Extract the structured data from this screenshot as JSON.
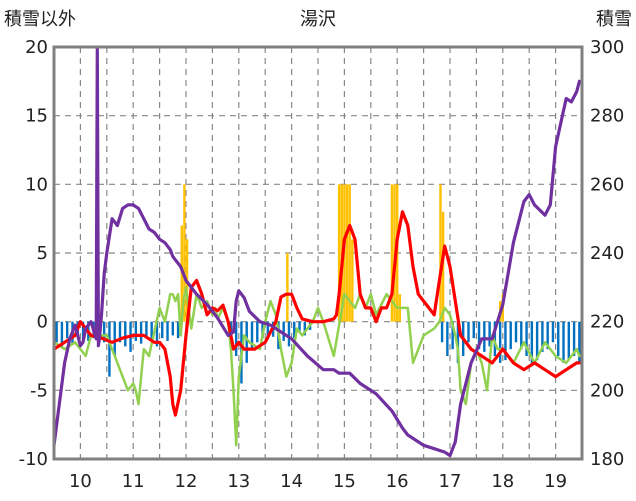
{
  "chart_data": {
    "type": "line",
    "title": "湯沢",
    "left_axis_label": "積雪以外",
    "right_axis_label": "積雪",
    "x_tick_labels": [
      "10",
      "11",
      "12",
      "13",
      "14",
      "15",
      "16",
      "17",
      "18",
      "19"
    ],
    "xlim": [
      9.5,
      19.5
    ],
    "y_left": {
      "lim": [
        -10,
        20
      ],
      "ticks": [
        -10,
        -5,
        0,
        5,
        10,
        15,
        20
      ]
    },
    "y_right": {
      "lim": [
        180,
        300
      ],
      "ticks": [
        180,
        200,
        220,
        240,
        260,
        280,
        300
      ]
    },
    "grid": {
      "horizontal": "dashed",
      "vertical": "dashed"
    },
    "colors": {
      "snow_depth": "#7030A0",
      "temperature_red": "#FF0000",
      "temperature_green": "#92D050",
      "precip_orange": "#FFC000",
      "bars_blue": "#0070C0",
      "axes": "#808080",
      "grid": "#888888"
    },
    "series": [
      {
        "key": "snow_depth",
        "axis": "right",
        "type": "line",
        "x": [
          9.5,
          9.6,
          9.7,
          9.8,
          9.9,
          10.0,
          10.05,
          10.1,
          10.2,
          10.3,
          10.32,
          10.34,
          10.36,
          10.4,
          10.45,
          10.5,
          10.6,
          10.7,
          10.8,
          10.9,
          11.0,
          11.1,
          11.2,
          11.3,
          11.4,
          11.5,
          11.6,
          11.7,
          11.75,
          11.8,
          11.9,
          12.0,
          12.2,
          12.4,
          12.6,
          12.8,
          12.9,
          12.95,
          13.0,
          13.1,
          13.2,
          13.4,
          13.6,
          13.8,
          14.0,
          14.3,
          14.6,
          14.8,
          14.9,
          15.0,
          15.1,
          15.3,
          15.6,
          15.9,
          16.1,
          16.2,
          16.3,
          16.5,
          16.7,
          16.9,
          17.0,
          17.1,
          17.2,
          17.4,
          17.6,
          17.8,
          18.0,
          18.2,
          18.4,
          18.5,
          18.6,
          18.8,
          18.9,
          19.0,
          19.1,
          19.2,
          19.3,
          19.4,
          19.45
        ],
        "values": [
          184,
          196,
          208,
          215,
          219,
          213,
          214,
          218,
          220,
          215,
          300,
          213,
          215,
          222,
          234,
          240,
          250,
          248,
          253,
          254,
          254,
          253,
          250,
          247,
          246,
          244,
          243,
          241,
          239,
          238,
          236,
          232,
          228,
          225,
          221,
          216,
          217,
          226,
          229,
          227,
          223,
          220,
          219,
          217,
          215,
          210,
          206,
          206,
          205,
          205,
          205,
          202,
          199,
          194,
          189,
          187,
          186,
          184,
          183,
          182,
          181,
          185,
          196,
          208,
          215,
          215,
          225,
          243,
          255,
          257,
          254,
          251,
          254,
          271,
          278,
          285,
          284,
          287,
          290
        ]
      },
      {
        "key": "temperature_red",
        "axis": "left",
        "type": "line",
        "x": [
          9.5,
          9.7,
          9.9,
          10.0,
          10.2,
          10.4,
          10.6,
          10.8,
          11.0,
          11.2,
          11.4,
          11.5,
          11.6,
          11.7,
          11.75,
          11.8,
          11.9,
          12.0,
          12.1,
          12.2,
          12.3,
          12.4,
          12.5,
          12.6,
          12.7,
          12.8,
          12.9,
          13.0,
          13.1,
          13.3,
          13.5,
          13.7,
          13.8,
          13.9,
          14.0,
          14.1,
          14.2,
          14.4,
          14.6,
          14.8,
          14.85,
          14.9,
          15.0,
          15.1,
          15.2,
          15.3,
          15.4,
          15.5,
          15.6,
          15.7,
          15.8,
          15.9,
          16.0,
          16.1,
          16.2,
          16.3,
          16.4,
          16.5,
          16.6,
          16.7,
          16.8,
          16.9,
          17.0,
          17.2,
          17.4,
          17.6,
          17.8,
          18.0,
          18.2,
          18.4,
          18.6,
          18.8,
          19.0,
          19.2,
          19.4,
          19.45
        ],
        "values": [
          -2,
          -1.5,
          -1,
          0,
          -1,
          -1.2,
          -1.5,
          -1.2,
          -1,
          -1,
          -1.5,
          -1.5,
          -2,
          -4,
          -6,
          -6.8,
          -5,
          -1,
          2.5,
          3,
          2,
          0.5,
          1,
          0.8,
          1.2,
          0,
          -2,
          -1.5,
          -2,
          -2,
          -1.5,
          0,
          1.8,
          2,
          2,
          1,
          0.2,
          0,
          0,
          0.2,
          0.5,
          2,
          6,
          7,
          6,
          2,
          1,
          1,
          0,
          1,
          1,
          2,
          6,
          8,
          7,
          4,
          2,
          1.5,
          1,
          0.5,
          3,
          5.5,
          4,
          -1,
          -2,
          -2.5,
          -3,
          -2,
          -3,
          -3.5,
          -3,
          -3.5,
          -4,
          -3.5,
          -3,
          -3
        ]
      },
      {
        "key": "temperature_green",
        "axis": "left",
        "type": "line",
        "x": [
          9.5,
          9.7,
          9.9,
          10.1,
          10.2,
          10.3,
          10.5,
          10.7,
          10.8,
          10.9,
          11.0,
          11.05,
          11.1,
          11.2,
          11.3,
          11.5,
          11.6,
          11.7,
          11.75,
          11.8,
          11.85,
          11.9,
          11.95,
          12.0,
          12.05,
          12.1,
          12.2,
          12.3,
          12.4,
          12.5,
          12.55,
          12.6,
          12.7,
          12.8,
          12.85,
          12.9,
          12.95,
          13.0,
          13.1,
          13.2,
          13.4,
          13.5,
          13.6,
          13.7,
          13.8,
          13.9,
          14.0,
          14.1,
          14.2,
          14.4,
          14.5,
          14.6,
          14.8,
          15.0,
          15.1,
          15.2,
          15.3,
          15.4,
          15.5,
          15.6,
          15.8,
          16.0,
          16.1,
          16.2,
          16.3,
          16.5,
          16.7,
          16.8,
          16.9,
          17.0,
          17.1,
          17.15,
          17.2,
          17.3,
          17.4,
          17.5,
          17.6,
          17.7,
          17.8,
          17.9,
          18.0,
          18.2,
          18.4,
          18.6,
          18.8,
          19.0,
          19.2,
          19.4,
          19.45
        ],
        "values": [
          -1.5,
          -2,
          -1.5,
          -2.5,
          -1,
          -1,
          -1,
          -3,
          -4,
          -5,
          -4.5,
          -5,
          -6,
          -2,
          -2.5,
          1,
          0,
          2,
          2,
          1.5,
          2,
          -1,
          1.5,
          2.5,
          1,
          -0.5,
          2,
          1,
          1.5,
          0.5,
          1,
          0.2,
          1,
          0,
          -2,
          -5,
          -9,
          -4,
          -1,
          -1.5,
          -2,
          0,
          1.5,
          0.5,
          -2,
          -4,
          -3,
          -0.5,
          -1,
          0,
          1,
          0,
          -2.5,
          2,
          1.5,
          1,
          2,
          1,
          2,
          0.5,
          2,
          1,
          1,
          1,
          -3,
          -1,
          -0.5,
          0,
          1,
          0.5,
          -1,
          -2,
          -5,
          -6,
          -3,
          -2,
          -3,
          -5,
          -1,
          -2,
          -2,
          -3,
          -1.5,
          -3,
          -1.5,
          -2.5,
          -3,
          -2,
          -2.5
        ]
      },
      {
        "key": "precip_orange",
        "axis": "left",
        "type": "bar",
        "x": [
          11.92,
          11.97,
          12.02,
          13.92,
          14.9,
          14.95,
          15.0,
          15.05,
          15.1,
          15.15,
          15.9,
          15.95,
          16.0,
          16.05,
          16.82,
          16.87,
          17.95,
          18.0
        ],
        "values": [
          7,
          10,
          6,
          5,
          10,
          10,
          10,
          10,
          10,
          6,
          10,
          10,
          10,
          2,
          10,
          8,
          1.5,
          2
        ]
      },
      {
        "key": "bars_blue",
        "axis": "left",
        "type": "bar",
        "x": [
          9.55,
          9.65,
          9.75,
          9.85,
          9.95,
          10.05,
          10.15,
          10.25,
          10.35,
          10.45,
          10.55,
          10.65,
          10.75,
          10.85,
          10.95,
          11.05,
          11.15,
          11.25,
          11.35,
          11.45,
          11.55,
          11.65,
          11.75,
          11.85,
          12.85,
          12.95,
          13.05,
          13.15,
          13.25,
          13.35,
          13.45,
          13.55,
          13.65,
          13.75,
          13.85,
          13.95,
          14.05,
          14.15,
          14.25,
          14.35,
          16.85,
          16.95,
          17.05,
          17.15,
          17.25,
          17.35,
          17.45,
          17.55,
          17.65,
          17.75,
          17.85,
          17.95,
          18.05,
          18.15,
          18.25,
          18.35,
          18.45,
          18.55,
          18.65,
          18.75,
          18.85,
          18.95,
          19.05,
          19.15,
          19.25,
          19.35,
          19.45
        ],
        "values": [
          -1.5,
          -1.8,
          -1.2,
          -1.6,
          -1.1,
          -1.3,
          -1.4,
          -1.2,
          -1.1,
          -1.5,
          -4,
          -2.5,
          -1.5,
          -1.8,
          -2.2,
          -1.4,
          -1.6,
          -1.2,
          -1.5,
          -1.8,
          -1.2,
          -1.4,
          -1,
          -1.2,
          -2,
          -2.5,
          -4.5,
          -3,
          -2,
          -1.5,
          -1.2,
          -1.3,
          -1.1,
          -2,
          -1.4,
          -1.8,
          -1.2,
          -0.8,
          -1,
          -0.6,
          -1.5,
          -2.5,
          -2,
          -3,
          -2.5,
          -1.5,
          -1.2,
          -2,
          -2.2,
          -1.8,
          -2.5,
          -3,
          -2.8,
          -2,
          -1.5,
          -2,
          -2.5,
          -3,
          -2.8,
          -2.2,
          -2,
          -1.5,
          -2.5,
          -3,
          -2.8,
          -2.5,
          -3
        ]
      }
    ]
  }
}
